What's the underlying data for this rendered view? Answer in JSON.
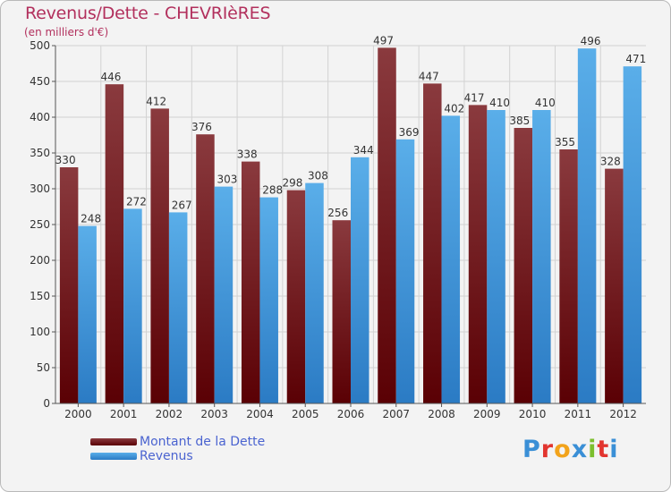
{
  "header": {
    "title": "Revenus/Dette - CHEVRIèRES",
    "subtitle": "(en milliers d'€)"
  },
  "legend": {
    "items": [
      {
        "label": "Montant de la Dette",
        "color": "#6b0f14"
      },
      {
        "label": "Revenus",
        "color": "#4ea6e8"
      }
    ]
  },
  "logo": {
    "letters": [
      "P",
      "r",
      "o",
      "x",
      "i",
      "t",
      "i"
    ],
    "colors": [
      "#3a8fd6",
      "#e2352f",
      "#f2a31b",
      "#3a8fd6",
      "#7cbf2e",
      "#e2352f",
      "#3a8fd6"
    ]
  },
  "chart_data": {
    "type": "bar",
    "categories": [
      "2000",
      "2001",
      "2002",
      "2003",
      "2004",
      "2005",
      "2006",
      "2007",
      "2008",
      "2009",
      "2010",
      "2011",
      "2012"
    ],
    "series": [
      {
        "name": "Montant de la Dette",
        "color": "#6b0f14",
        "values": [
          330,
          446,
          412,
          376,
          338,
          298,
          256,
          497,
          447,
          417,
          385,
          355,
          328
        ]
      },
      {
        "name": "Revenus",
        "color": "#4ea6e8",
        "values": [
          248,
          272,
          267,
          303,
          288,
          308,
          344,
          369,
          402,
          410,
          410,
          496,
          471
        ]
      }
    ],
    "yticks": [
      0,
      50,
      100,
      150,
      200,
      250,
      300,
      350,
      400,
      450,
      500
    ],
    "ylim": [
      0,
      500
    ],
    "grid": true,
    "legend_position": "bottom-left",
    "title": "Revenus/Dette - CHEVRIèRES",
    "ylabel": "(en milliers d'€)",
    "xlabel": ""
  }
}
